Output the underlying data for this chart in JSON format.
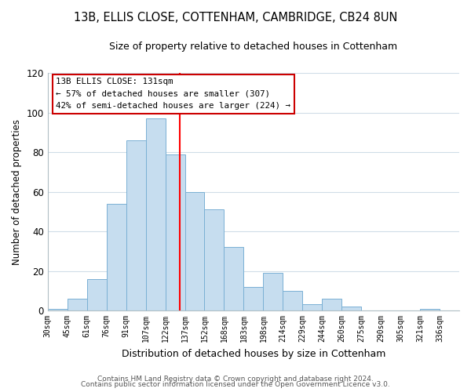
{
  "title": "13B, ELLIS CLOSE, COTTENHAM, CAMBRIDGE, CB24 8UN",
  "subtitle": "Size of property relative to detached houses in Cottenham",
  "xlabel": "Distribution of detached houses by size in Cottenham",
  "ylabel": "Number of detached properties",
  "footer_line1": "Contains HM Land Registry data © Crown copyright and database right 2024.",
  "footer_line2": "Contains public sector information licensed under the Open Government Licence v3.0.",
  "bin_labels": [
    "30sqm",
    "45sqm",
    "61sqm",
    "76sqm",
    "91sqm",
    "107sqm",
    "122sqm",
    "137sqm",
    "152sqm",
    "168sqm",
    "183sqm",
    "198sqm",
    "214sqm",
    "229sqm",
    "244sqm",
    "260sqm",
    "275sqm",
    "290sqm",
    "305sqm",
    "321sqm",
    "336sqm"
  ],
  "bar_heights": [
    1,
    6,
    16,
    54,
    86,
    97,
    79,
    60,
    51,
    32,
    12,
    19,
    10,
    3,
    6,
    2,
    0,
    0,
    0,
    1,
    0
  ],
  "bar_color": "#c6ddef",
  "bar_edge_color": "#7ab0d4",
  "vline_x": 131,
  "vline_color": "red",
  "annotation_title": "13B ELLIS CLOSE: 131sqm",
  "annotation_line1": "← 57% of detached houses are smaller (307)",
  "annotation_line2": "42% of semi-detached houses are larger (224) →",
  "annotation_box_color": "#ffffff",
  "annotation_box_edge": "#cc0000",
  "ylim": [
    0,
    120
  ],
  "xlim_start": 30,
  "bin_size": 15,
  "num_bins": 21
}
